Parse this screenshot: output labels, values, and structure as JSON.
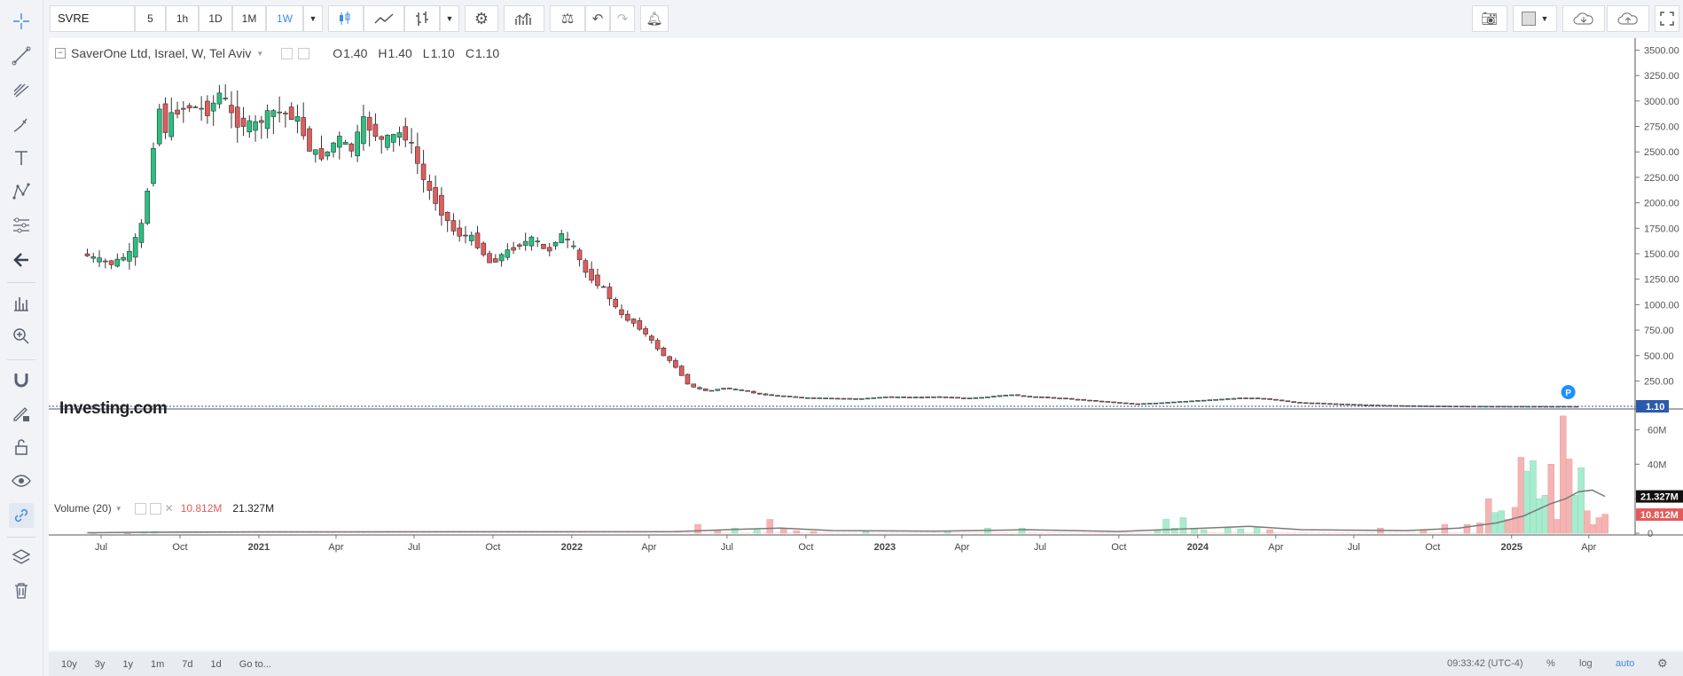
{
  "toolbar": {
    "symbol": "SVRE",
    "intervals": [
      "5",
      "1h",
      "1D",
      "1M",
      "1W"
    ],
    "active_interval": "1W",
    "icons": [
      "candle-type-icon",
      "line-type-icon",
      "bar-type-icon",
      "settings-icon",
      "indicators-icon",
      "compare-icon",
      "undo-icon",
      "redo-icon",
      "alert-icon"
    ],
    "right_icons": [
      "camera-icon",
      "color-square-icon",
      "cloud-download-icon",
      "cloud-upload-icon",
      "fullscreen-icon"
    ]
  },
  "legend": {
    "title": "SaverOne Ltd, Israel, W, Tel Aviv",
    "o_label": "O",
    "o_value": "1.40",
    "h_label": "H",
    "h_value": "1.40",
    "l_label": "L",
    "l_value": "1.10",
    "c_label": "C",
    "c_value": "1.10"
  },
  "volume_legend": {
    "label": "Volume (20)",
    "value1": "10.812M",
    "value2": "21.327M"
  },
  "watermark": "Investing.com",
  "marker_label": "P",
  "bottom": {
    "ranges": [
      "10y",
      "3y",
      "1y",
      "1m",
      "7d",
      "1d",
      "Go to..."
    ],
    "time": "09:33:42 (UTC-4)",
    "options": [
      "%",
      "log",
      "auto"
    ]
  },
  "colors": {
    "up": "#26c281",
    "down": "#e25c5c",
    "volume_up": "#a8ebce",
    "volume_down": "#f5b4b4",
    "ma": "#7a7a7a",
    "accent": "#3b8de0"
  },
  "chart_data": [
    {
      "type": "candlestick",
      "title": "SaverOne Ltd, Israel, W, Tel Aviv",
      "y_ticks": [
        0,
        250,
        500,
        750,
        1000,
        1250,
        1500,
        1750,
        2000,
        2250,
        2500,
        2750,
        3000,
        3250,
        3500
      ],
      "ylim": [
        -25,
        3600
      ],
      "last_price": "1.10",
      "x_tick_labels": [
        "Jul",
        "Oct",
        "2021",
        "Apr",
        "Jul",
        "Oct",
        "2022",
        "Apr",
        "Jul",
        "Oct",
        "2023",
        "Apr",
        "Jul",
        "Oct",
        "2024",
        "Apr",
        "Jul",
        "Oct",
        "2025",
        "Apr"
      ],
      "x_tick_dates": [
        "2020-07-01",
        "2020-10-01",
        "2021-01-01",
        "2021-04-01",
        "2021-07-01",
        "2021-10-01",
        "2022-01-01",
        "2022-04-01",
        "2022-07-01",
        "2022-10-01",
        "2023-01-01",
        "2023-04-01",
        "2023-07-01",
        "2023-10-01",
        "2024-01-01",
        "2024-04-01",
        "2024-07-01",
        "2024-10-01",
        "2025-01-01",
        "2025-04-01"
      ],
      "close_path": [
        [
          "2020-06-15",
          1500
        ],
        [
          "2020-07-01",
          1450
        ],
        [
          "2020-07-20",
          1400
        ],
        [
          "2020-08-10",
          1500
        ],
        [
          "2020-08-25",
          1800
        ],
        [
          "2020-09-05",
          2400
        ],
        [
          "2020-09-12",
          3000
        ],
        [
          "2020-09-20",
          2700
        ],
        [
          "2020-10-01",
          2900
        ],
        [
          "2020-10-20",
          2950
        ],
        [
          "2020-11-10",
          2900
        ],
        [
          "2020-11-25",
          3100
        ],
        [
          "2020-12-10",
          2800
        ],
        [
          "2021-01-01",
          2750
        ],
        [
          "2021-01-25",
          2900
        ],
        [
          "2021-02-20",
          2850
        ],
        [
          "2021-03-10",
          2500
        ],
        [
          "2021-03-25",
          2450
        ],
        [
          "2021-04-10",
          2650
        ],
        [
          "2021-04-25",
          2500
        ],
        [
          "2021-05-10",
          2800
        ],
        [
          "2021-06-01",
          2600
        ],
        [
          "2021-06-25",
          2700
        ],
        [
          "2021-07-05",
          2550
        ],
        [
          "2021-07-20",
          2200
        ],
        [
          "2021-08-10",
          1900
        ],
        [
          "2021-08-25",
          1700
        ],
        [
          "2021-09-15",
          1650
        ],
        [
          "2021-10-05",
          1400
        ],
        [
          "2021-10-20",
          1500
        ],
        [
          "2021-11-10",
          1600
        ],
        [
          "2021-11-25",
          1650
        ],
        [
          "2021-12-10",
          1500
        ],
        [
          "2021-12-25",
          1700
        ],
        [
          "2022-01-10",
          1550
        ],
        [
          "2022-01-25",
          1300
        ],
        [
          "2022-02-15",
          1150
        ],
        [
          "2022-03-05",
          900
        ],
        [
          "2022-03-25",
          800
        ],
        [
          "2022-04-10",
          650
        ],
        [
          "2022-04-25",
          500
        ],
        [
          "2022-05-10",
          380
        ],
        [
          "2022-05-25",
          200
        ],
        [
          "2022-06-15",
          150
        ],
        [
          "2022-07-05",
          180
        ],
        [
          "2022-07-25",
          160
        ],
        [
          "2022-08-15",
          120
        ],
        [
          "2022-09-10",
          100
        ],
        [
          "2022-10-10",
          85
        ],
        [
          "2022-11-10",
          80
        ],
        [
          "2022-12-10",
          75
        ],
        [
          "2023-01-10",
          95
        ],
        [
          "2023-02-10",
          90
        ],
        [
          "2023-03-15",
          95
        ],
        [
          "2023-04-15",
          80
        ],
        [
          "2023-05-05",
          90
        ],
        [
          "2023-06-01",
          115
        ],
        [
          "2023-07-01",
          95
        ],
        [
          "2023-08-01",
          80
        ],
        [
          "2023-09-01",
          60
        ],
        [
          "2023-10-01",
          40
        ],
        [
          "2023-10-25",
          25
        ],
        [
          "2023-11-25",
          35
        ],
        [
          "2024-01-01",
          55
        ],
        [
          "2024-02-01",
          70
        ],
        [
          "2024-03-01",
          85
        ],
        [
          "2024-03-25",
          75
        ],
        [
          "2024-05-01",
          40
        ],
        [
          "2024-06-01",
          30
        ],
        [
          "2024-07-01",
          20
        ],
        [
          "2024-08-01",
          12
        ],
        [
          "2024-09-01",
          8
        ],
        [
          "2024-10-01",
          5
        ],
        [
          "2024-11-01",
          3
        ],
        [
          "2024-12-01",
          2
        ],
        [
          "2025-01-01",
          1.6
        ],
        [
          "2025-02-01",
          1.3
        ],
        [
          "2025-03-01",
          1.2
        ],
        [
          "2025-03-20",
          1.1
        ]
      ]
    },
    {
      "type": "bar",
      "title": "Volume (20)",
      "y_ticks": [
        0,
        20,
        40,
        60
      ],
      "y_tick_labels": [
        "0",
        "20M",
        "40M",
        "60M"
      ],
      "ylim": [
        -1,
        71
      ],
      "unit": "M",
      "last_values": [
        "21.327M",
        "10.812M"
      ],
      "bars": [
        [
          "2020-06-22",
          0.3,
          "up"
        ],
        [
          "2020-08-01",
          0.2,
          "down"
        ],
        [
          "2020-08-20",
          0.8,
          "up"
        ],
        [
          "2020-09-01",
          1.0,
          "up"
        ],
        [
          "2022-05-28",
          5.0,
          "down"
        ],
        [
          "2022-06-20",
          1.5,
          "down"
        ],
        [
          "2022-07-10",
          3.0,
          "up"
        ],
        [
          "2022-08-05",
          2.5,
          "up"
        ],
        [
          "2022-08-20",
          8.0,
          "down"
        ],
        [
          "2022-09-05",
          3.0,
          "down"
        ],
        [
          "2022-09-20",
          1.5,
          "down"
        ],
        [
          "2022-10-10",
          1.0,
          "down"
        ],
        [
          "2022-12-10",
          1.0,
          "up"
        ],
        [
          "2023-03-15",
          1.0,
          "up"
        ],
        [
          "2023-05-01",
          3.0,
          "up"
        ],
        [
          "2023-06-10",
          3.0,
          "up"
        ],
        [
          "2023-11-15",
          2.0,
          "up"
        ],
        [
          "2023-11-25",
          8.0,
          "up"
        ],
        [
          "2023-12-05",
          3.0,
          "up"
        ],
        [
          "2023-12-15",
          9.0,
          "up"
        ],
        [
          "2023-12-28",
          3.0,
          "up"
        ],
        [
          "2024-01-08",
          2.0,
          "up"
        ],
        [
          "2024-02-05",
          3.0,
          "up"
        ],
        [
          "2024-02-20",
          2.5,
          "up"
        ],
        [
          "2024-03-10",
          3.5,
          "up"
        ],
        [
          "2024-03-25",
          2.0,
          "down"
        ],
        [
          "2024-08-01",
          3.0,
          "down"
        ],
        [
          "2024-09-20",
          2.0,
          "down"
        ],
        [
          "2024-10-15",
          5.0,
          "down"
        ],
        [
          "2024-11-10",
          5.0,
          "down"
        ],
        [
          "2024-11-25",
          6.0,
          "down"
        ],
        [
          "2024-12-05",
          20.0,
          "down"
        ],
        [
          "2024-12-12",
          12.0,
          "up"
        ],
        [
          "2024-12-20",
          13.0,
          "up"
        ],
        [
          "2024-12-28",
          8.0,
          "down"
        ],
        [
          "2025-01-05",
          15.0,
          "down"
        ],
        [
          "2025-01-12",
          44.0,
          "down"
        ],
        [
          "2025-01-19",
          36.0,
          "up"
        ],
        [
          "2025-01-26",
          42.0,
          "up"
        ],
        [
          "2025-02-02",
          20.0,
          "up"
        ],
        [
          "2025-02-09",
          22.0,
          "up"
        ],
        [
          "2025-02-16",
          40.0,
          "down"
        ],
        [
          "2025-02-23",
          8.0,
          "down"
        ],
        [
          "2025-03-02",
          68.0,
          "down"
        ],
        [
          "2025-03-09",
          43.0,
          "down"
        ],
        [
          "2025-03-16",
          22.0,
          "up"
        ],
        [
          "2025-03-23",
          38.0,
          "up"
        ],
        [
          "2025-03-30",
          13.0,
          "down"
        ],
        [
          "2025-04-06",
          5.0,
          "down"
        ],
        [
          "2025-04-13",
          9.0,
          "down"
        ],
        [
          "2025-04-20",
          11.0,
          "down"
        ]
      ],
      "ma_path": [
        [
          "2020-06-15",
          0.3
        ],
        [
          "2020-09-01",
          0.6
        ],
        [
          "2021-01-01",
          0.8
        ],
        [
          "2022-05-01",
          0.9
        ],
        [
          "2022-07-15",
          2.3
        ],
        [
          "2022-09-01",
          3.0
        ],
        [
          "2022-11-01",
          1.5
        ],
        [
          "2023-03-01",
          1.2
        ],
        [
          "2023-06-15",
          2.0
        ],
        [
          "2023-10-01",
          1.0
        ],
        [
          "2023-12-15",
          2.5
        ],
        [
          "2024-03-01",
          4.0
        ],
        [
          "2024-05-01",
          2.0
        ],
        [
          "2024-09-01",
          1.5
        ],
        [
          "2024-11-01",
          3.0
        ],
        [
          "2024-12-15",
          6.0
        ],
        [
          "2025-01-15",
          10.0
        ],
        [
          "2025-02-15",
          17.0
        ],
        [
          "2025-03-05",
          20.0
        ],
        [
          "2025-03-20",
          24.0
        ],
        [
          "2025-04-05",
          25.0
        ],
        [
          "2025-04-20",
          21.3
        ]
      ]
    }
  ]
}
